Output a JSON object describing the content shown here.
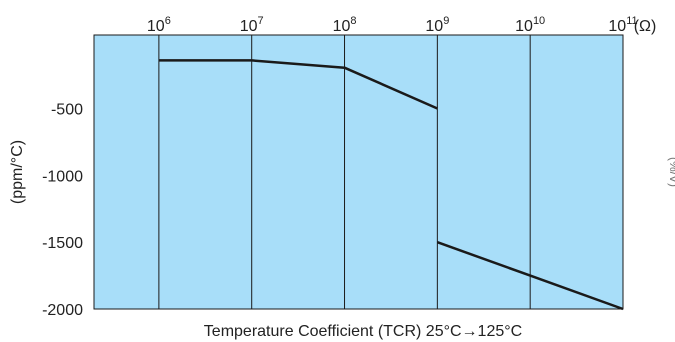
{
  "chart_data": {
    "type": "line",
    "title": "",
    "xlabel": "Temperature Coefficient (TCR) 25°C→125°C",
    "ylabel": "(ppm/°C)",
    "x_scale": "log",
    "x_unit": "(Ω)",
    "x_ticks": [
      {
        "value": 1000000,
        "base": "10",
        "exp": "6"
      },
      {
        "value": 10000000,
        "base": "10",
        "exp": "7"
      },
      {
        "value": 100000000,
        "base": "10",
        "exp": "8"
      },
      {
        "value": 1000000000,
        "base": "10",
        "exp": "9"
      },
      {
        "value": 10000000000,
        "base": "10",
        "exp": "10"
      },
      {
        "value": 100000000000,
        "base": "10",
        "exp": "11"
      }
    ],
    "y_ticks": [
      {
        "value": -500,
        "label": "-500"
      },
      {
        "value": -1000,
        "label": "-1000"
      },
      {
        "value": -1500,
        "label": "-1500"
      },
      {
        "value": -2000,
        "label": "-2000"
      }
    ],
    "xlim": [
      200000,
      100000000000
    ],
    "ylim": [
      -2000,
      50
    ],
    "grid": "vertical",
    "colors": {
      "plot_bg": "#a8def9",
      "line": "#1a1a1a",
      "grid": "#1a1a1a"
    },
    "series": [
      {
        "values": [
          {
            "x": 1000000,
            "y": -140
          },
          {
            "x": 10000000,
            "y": -140
          },
          {
            "x": 100000000,
            "y": -195
          },
          {
            "x": 1000000000,
            "y": -500
          }
        ]
      },
      {
        "values": [
          {
            "x": 1000000000,
            "y": -1500
          },
          {
            "x": 10000000000,
            "y": -1750
          },
          {
            "x": 100000000000,
            "y": -2000
          }
        ]
      }
    ]
  },
  "stray_label": "(%/V)"
}
